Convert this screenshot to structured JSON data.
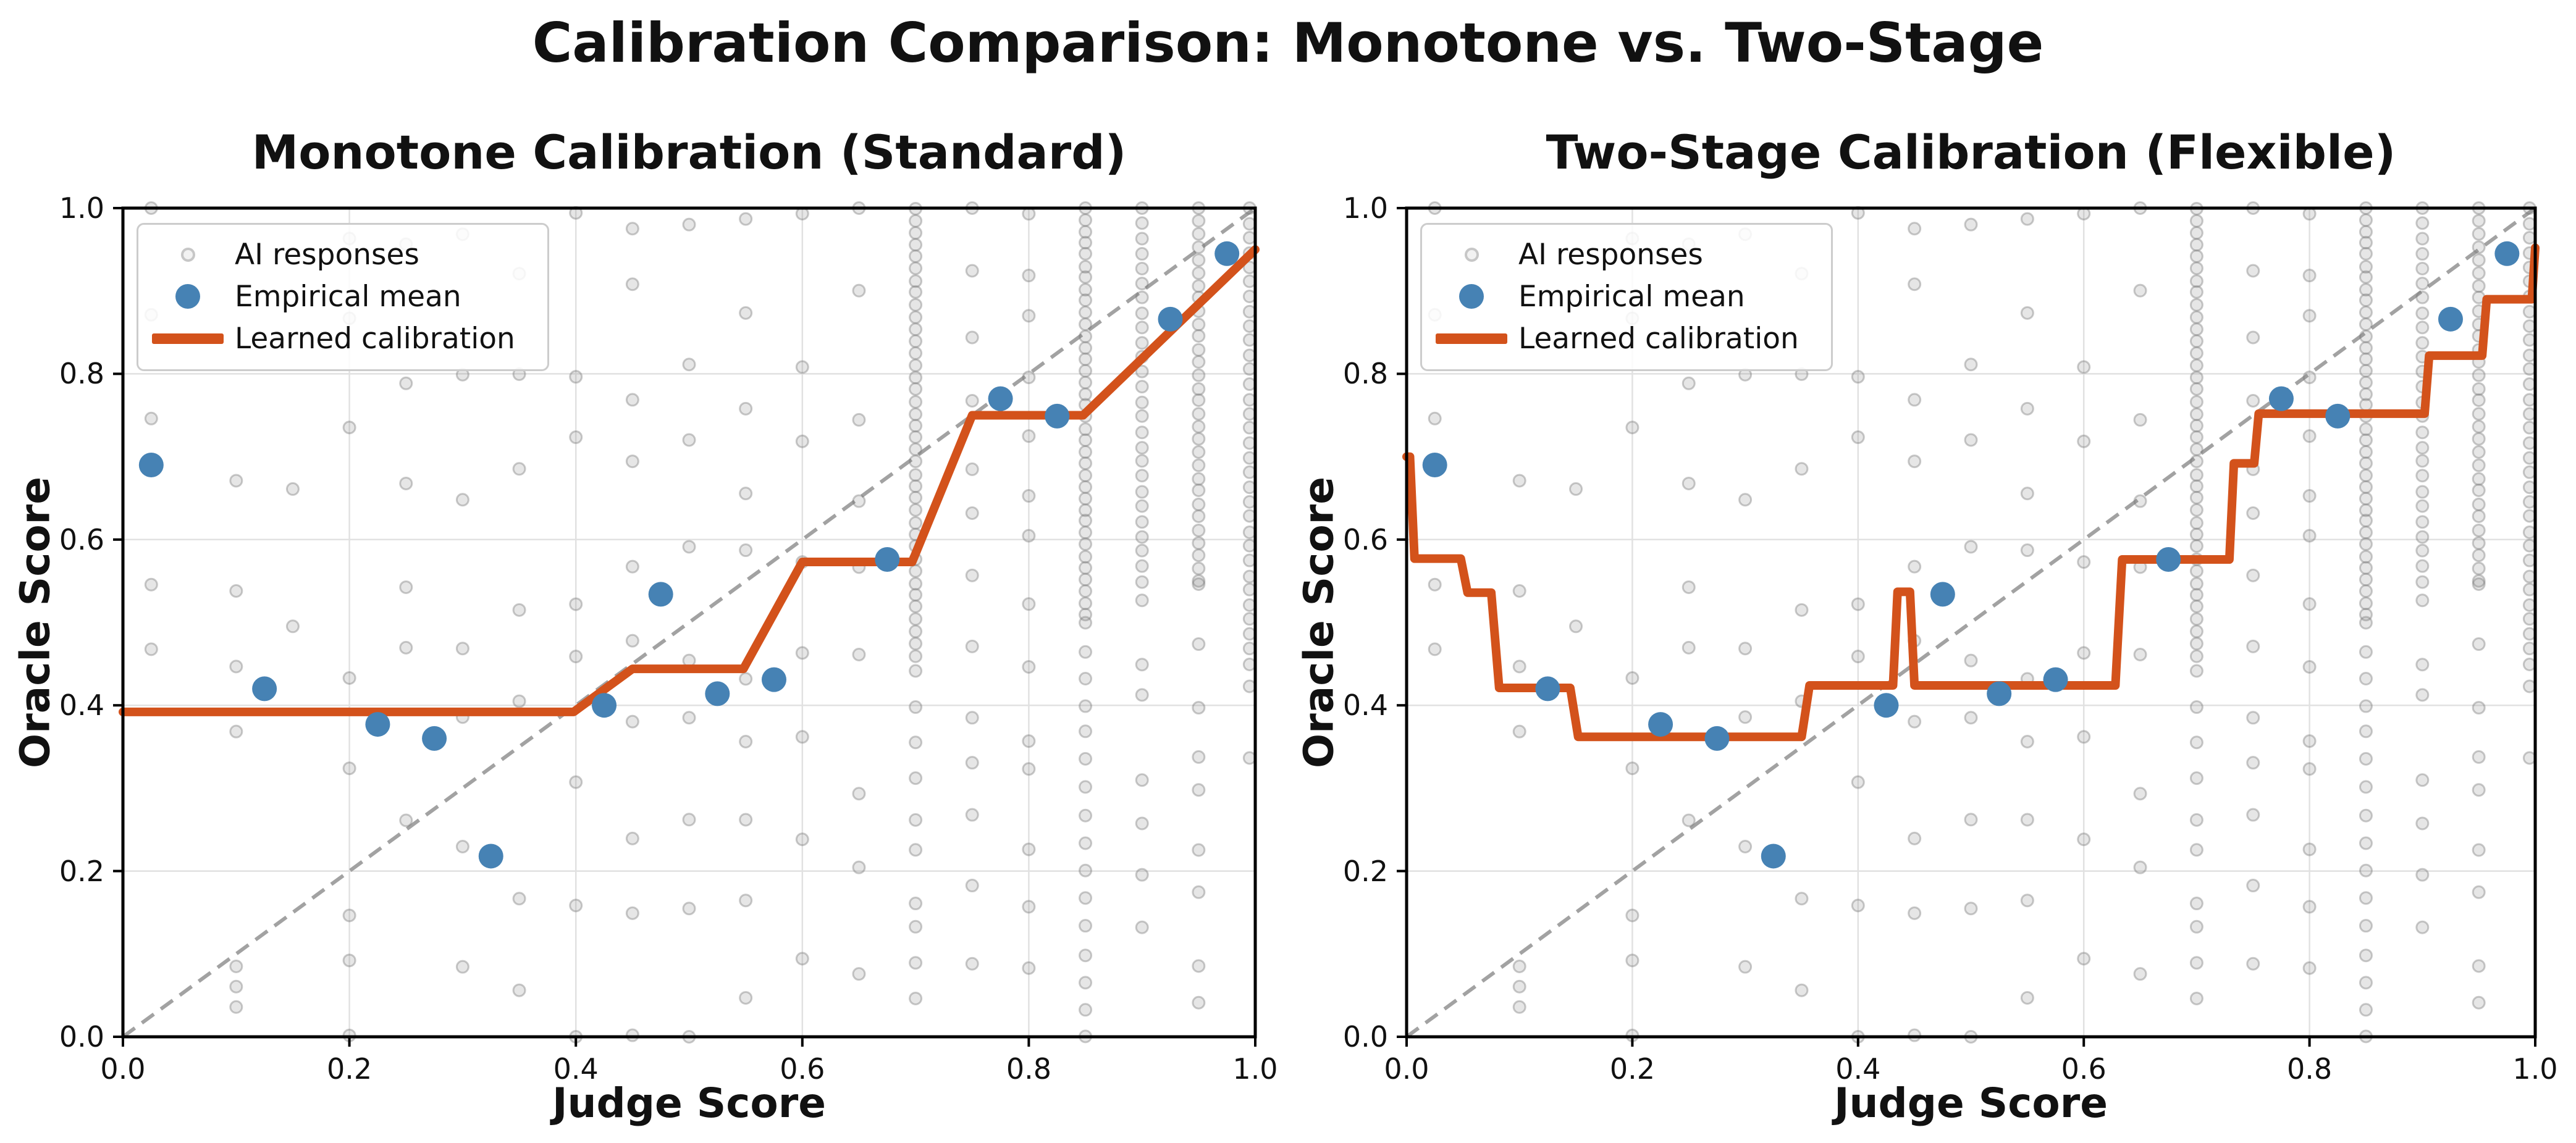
{
  "figure": {
    "suptitle": "Calibration Comparison: Monotone vs. Two-Stage",
    "background": "#ffffff"
  },
  "axis": {
    "xlabel": "Judge Score",
    "ylabel": "Oracle Score",
    "x_ticks": [
      "0.0",
      "0.2",
      "0.4",
      "0.6",
      "0.8",
      "1.0"
    ],
    "y_ticks": [
      "0.0",
      "0.2",
      "0.4",
      "0.6",
      "0.8",
      "1.0"
    ],
    "x_tick_values": [
      0.0,
      0.2,
      0.4,
      0.6,
      0.8,
      1.0
    ],
    "y_tick_values": [
      0.0,
      0.2,
      0.4,
      0.6,
      0.8,
      1.0
    ]
  },
  "legend": {
    "items": [
      {
        "label": "AI responses",
        "marker": "gray-open-dot"
      },
      {
        "label": "Empirical mean",
        "marker": "blue-dot"
      },
      {
        "label": "Learned calibration",
        "marker": "orange-line"
      }
    ]
  },
  "colors": {
    "calibration_line": "#d3521b",
    "empirical_mean": "#4682b4",
    "ai_response_fill": "rgba(128,128,128,0.20)",
    "ai_response_stroke": "rgba(115,115,115,0.38)",
    "identity_line": "#999999",
    "grid": "#e1e1e1",
    "spine": "#000000",
    "text": "#111111",
    "legend_border": "#cccccc"
  },
  "chart_data": {
    "type": "scatter",
    "note": "Two-panel calibration plot; gray AI-response points are approximate (semi-transparent vertical clusters at judge-score bins).",
    "xlim": [
      0,
      1
    ],
    "ylim": [
      0,
      1
    ],
    "identity_line": {
      "style": "dashed",
      "from": [
        0,
        0
      ],
      "to": [
        1,
        1
      ]
    },
    "empirical_mean_points": [
      [
        0.025,
        0.69
      ],
      [
        0.125,
        0.42
      ],
      [
        0.225,
        0.377
      ],
      [
        0.275,
        0.36
      ],
      [
        0.325,
        0.218
      ],
      [
        0.425,
        0.4
      ],
      [
        0.475,
        0.534
      ],
      [
        0.525,
        0.414
      ],
      [
        0.575,
        0.431
      ],
      [
        0.675,
        0.576
      ],
      [
        0.775,
        0.77
      ],
      [
        0.825,
        0.749
      ],
      [
        0.925,
        0.866
      ],
      [
        0.975,
        0.945
      ]
    ],
    "ai_response_columns": [
      {
        "x": 0.025,
        "segments": [
          [
            0.44,
            1.0,
            5
          ]
        ]
      },
      {
        "x": 0.1,
        "segments": [
          [
            0.03,
            0.09,
            3
          ],
          [
            0.38,
            0.65,
            4
          ]
        ]
      },
      {
        "x": 0.15,
        "segments": [
          [
            0.45,
            0.62,
            2
          ]
        ]
      },
      {
        "x": 0.2,
        "segments": [
          [
            0.0,
            0.16,
            3
          ],
          [
            0.34,
            0.44,
            2
          ],
          [
            0.7,
            0.96,
            3
          ]
        ]
      },
      {
        "x": 0.25,
        "segments": [
          [
            0.3,
            0.95,
            6
          ]
        ]
      },
      {
        "x": 0.3,
        "segments": [
          [
            0.05,
            0.95,
            7
          ]
        ]
      },
      {
        "x": 0.35,
        "segments": [
          [
            0.06,
            0.96,
            7
          ]
        ]
      },
      {
        "x": 0.4,
        "segments": [
          [
            0.02,
            0.97,
            8
          ]
        ]
      },
      {
        "x": 0.45,
        "segments": [
          [
            0.02,
            1.0,
            10
          ]
        ]
      },
      {
        "x": 0.5,
        "segments": [
          [
            0.0,
            0.97,
            9
          ]
        ]
      },
      {
        "x": 0.55,
        "segments": [
          [
            0.03,
            1.0,
            10
          ]
        ]
      },
      {
        "x": 0.6,
        "segments": [
          [
            0.08,
            0.97,
            8
          ]
        ]
      },
      {
        "x": 0.65,
        "segments": [
          [
            0.1,
            1.0,
            9
          ]
        ]
      },
      {
        "x": 0.7,
        "segments": [
          [
            0.04,
            0.44,
            10
          ],
          [
            0.46,
            1.0,
            38
          ]
        ]
      },
      {
        "x": 0.75,
        "segments": [
          [
            0.1,
            1.0,
            13
          ]
        ]
      },
      {
        "x": 0.8,
        "segments": [
          [
            0.1,
            1.0,
            14
          ]
        ]
      },
      {
        "x": 0.85,
        "segments": [
          [
            0.0,
            0.5,
            16
          ],
          [
            0.51,
            1.0,
            36
          ]
        ]
      },
      {
        "x": 0.9,
        "segments": [
          [
            0.12,
            0.54,
            7
          ],
          [
            0.55,
            1.0,
            26
          ]
        ]
      },
      {
        "x": 0.95,
        "segments": [
          [
            0.04,
            0.54,
            9
          ],
          [
            0.55,
            1.0,
            30
          ]
        ]
      },
      {
        "x": 0.995,
        "segments": [
          [
            0.3,
            0.44,
            2
          ],
          [
            0.45,
            1.0,
            32
          ]
        ]
      }
    ],
    "panels": [
      {
        "title": "Monotone Calibration (Standard)",
        "calibration_curve": [
          [
            0.0,
            0.392
          ],
          [
            0.398,
            0.392
          ],
          [
            0.45,
            0.444
          ],
          [
            0.548,
            0.444
          ],
          [
            0.6,
            0.573
          ],
          [
            0.697,
            0.573
          ],
          [
            0.75,
            0.75
          ],
          [
            0.848,
            0.75
          ],
          [
            1.0,
            0.95
          ]
        ]
      },
      {
        "title": "Two-Stage Calibration (Flexible)",
        "calibration_curve": [
          [
            0.0,
            0.7
          ],
          [
            0.003,
            0.7
          ],
          [
            0.007,
            0.577
          ],
          [
            0.048,
            0.577
          ],
          [
            0.054,
            0.536
          ],
          [
            0.075,
            0.536
          ],
          [
            0.082,
            0.421
          ],
          [
            0.145,
            0.421
          ],
          [
            0.152,
            0.362
          ],
          [
            0.35,
            0.362
          ],
          [
            0.357,
            0.424
          ],
          [
            0.431,
            0.424
          ],
          [
            0.435,
            0.537
          ],
          [
            0.446,
            0.537
          ],
          [
            0.45,
            0.424
          ],
          [
            0.628,
            0.424
          ],
          [
            0.634,
            0.576
          ],
          [
            0.729,
            0.576
          ],
          [
            0.733,
            0.692
          ],
          [
            0.751,
            0.692
          ],
          [
            0.755,
            0.752
          ],
          [
            0.902,
            0.752
          ],
          [
            0.906,
            0.822
          ],
          [
            0.953,
            0.822
          ],
          [
            0.957,
            0.89
          ],
          [
            0.997,
            0.89
          ],
          [
            1.0,
            0.952
          ]
        ]
      }
    ]
  }
}
